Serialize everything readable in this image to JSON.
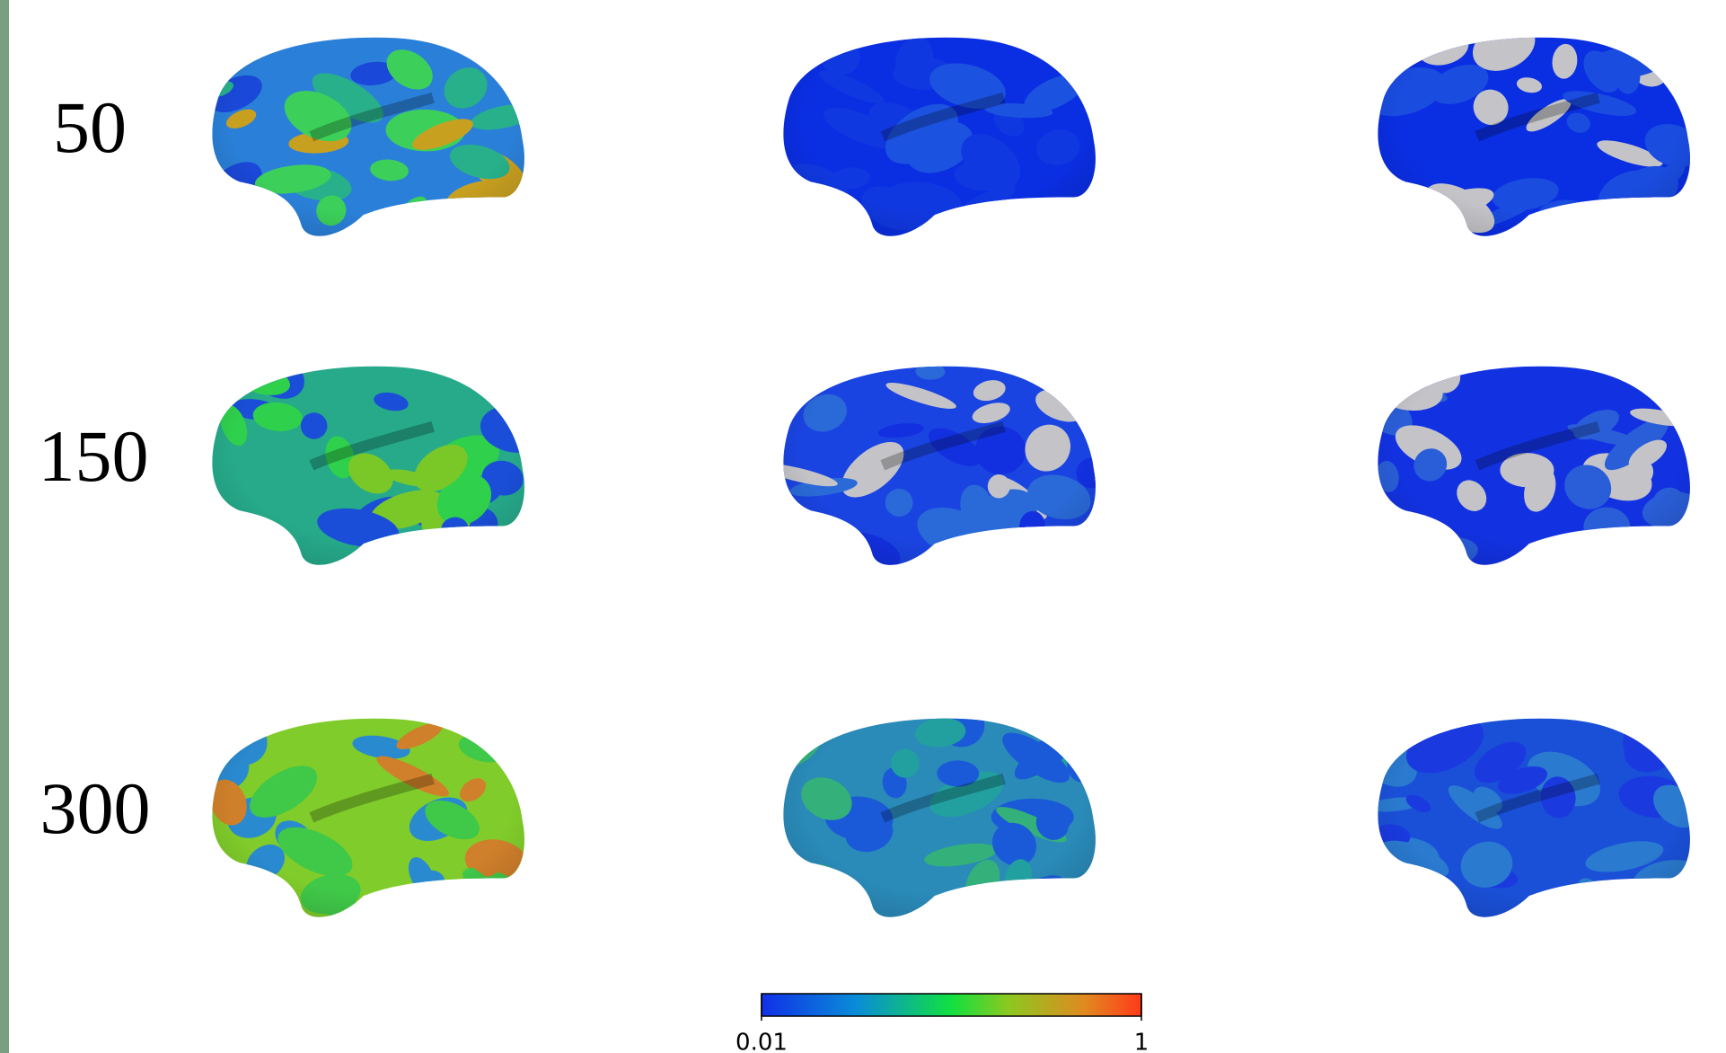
{
  "rows": [
    {
      "label": "50"
    },
    {
      "label": "150"
    },
    {
      "label": "300"
    }
  ],
  "colorbar": {
    "range": [
      0.01,
      1
    ],
    "ticks": [
      0.01,
      1
    ]
  }
}
